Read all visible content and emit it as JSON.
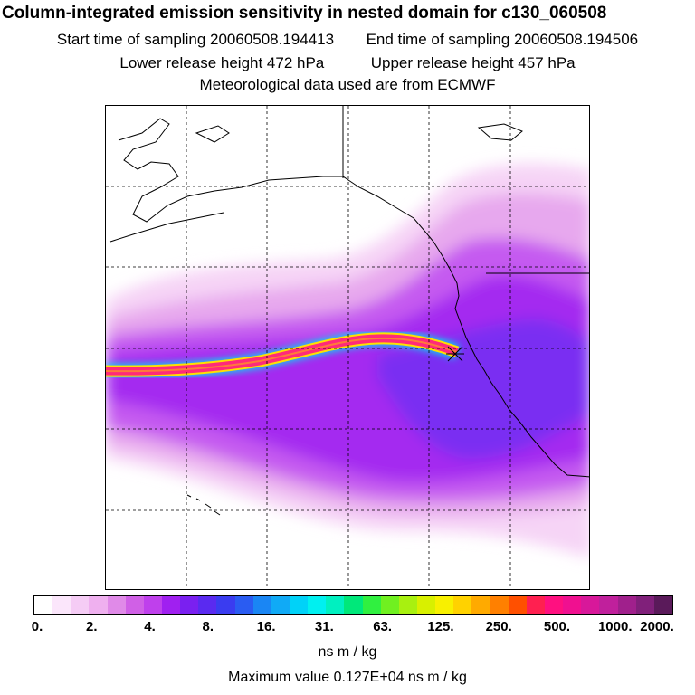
{
  "title": "Column-integrated emission sensitivity in nested domain for c130_060508",
  "sampling": {
    "start": "Start time of sampling 20060508.194413",
    "end": "End time of sampling 20060508.194506"
  },
  "release": {
    "lower": "Lower release height  472 hPa",
    "upper": "Upper release height  457 hPa"
  },
  "met_source": "Meteorological data used are from ECMWF",
  "colorbar": {
    "tick_labels": [
      "0.",
      "2.",
      "4.",
      "8.",
      "16.",
      "31.",
      "63.",
      "125.",
      "250.",
      "500.",
      "1000.",
      "2000."
    ],
    "colors": [
      "#ffffff",
      "#fbe6fb",
      "#f5ccf5",
      "#efb0ef",
      "#e08ae8",
      "#d060e6",
      "#bf40ec",
      "#a020f0",
      "#7a20f0",
      "#5a2af0",
      "#3a3cf0",
      "#2a5cf2",
      "#1a86f4",
      "#10aaf6",
      "#00d2f8",
      "#00f0f0",
      "#00f0c0",
      "#00e87a",
      "#30f040",
      "#70f020",
      "#a8f010",
      "#d8f000",
      "#f8f000",
      "#ffd200",
      "#ffaa00",
      "#ff8000",
      "#ff5000",
      "#ff2050",
      "#ff1080",
      "#f01090",
      "#d8189a",
      "#c0209c",
      "#a0208c",
      "#80207a",
      "#5a1a5a"
    ]
  },
  "units": "ns m / kg",
  "max_value": "Maximum value  0.127E+04 ns m / kg"
}
